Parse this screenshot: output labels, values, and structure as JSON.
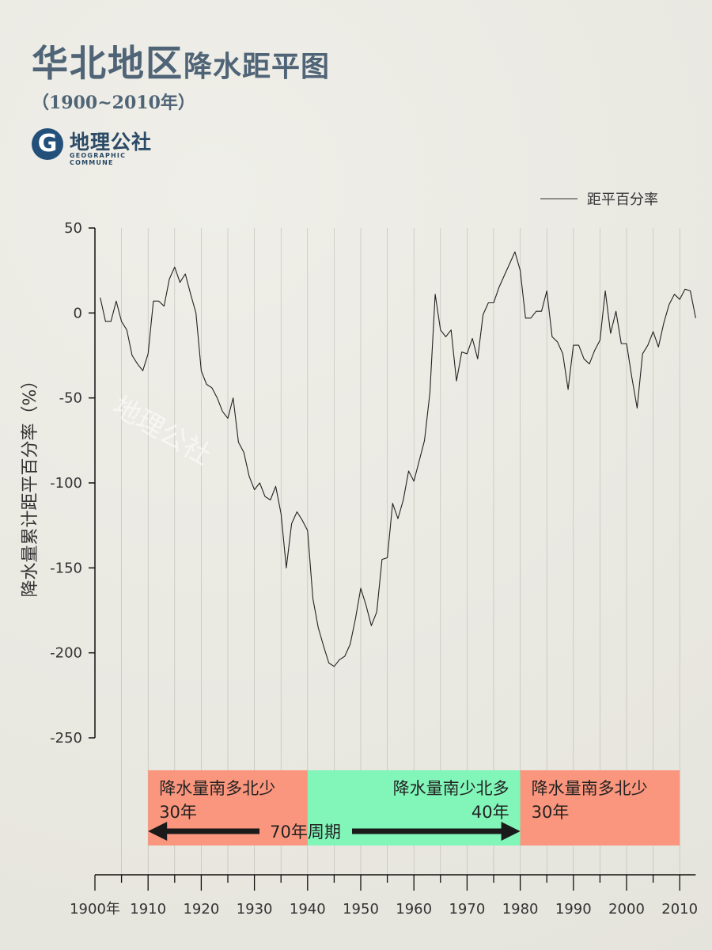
{
  "header": {
    "title_main": "华北地区",
    "title_sub": "降水距平图",
    "period": "（1900~2010年）"
  },
  "logo": {
    "glyph": "G",
    "name_cn": "地理公社",
    "name_en": "GEOGRAPHIC COMMUNE",
    "watermark": "地理公社"
  },
  "colors": {
    "title": "#4f6476",
    "logo": "#23507a",
    "band_dry": "#fa967d",
    "band_wet": "#82f5b9",
    "line": "#222222"
  },
  "chart_data": {
    "type": "line",
    "ylabel": "降水量累计距平百分率（%）",
    "ylim": [
      -250,
      50
    ],
    "yticks": [
      50,
      0,
      -50,
      -100,
      -150,
      -200,
      -250
    ],
    "xlim": [
      1900,
      2013
    ],
    "xtick_labels": [
      {
        "x": 1900,
        "label": "1900年"
      },
      {
        "x": 1910,
        "label": "1910"
      },
      {
        "x": 1920,
        "label": "1920"
      },
      {
        "x": 1930,
        "label": "1930"
      },
      {
        "x": 1940,
        "label": "1940"
      },
      {
        "x": 1950,
        "label": "1950"
      },
      {
        "x": 1960,
        "label": "1960"
      },
      {
        "x": 1970,
        "label": "1970"
      },
      {
        "x": 1980,
        "label": "1980"
      },
      {
        "x": 1990,
        "label": "1990"
      },
      {
        "x": 2000,
        "label": "2000"
      },
      {
        "x": 2010,
        "label": "2010"
      }
    ],
    "legend": {
      "label": "距平百分率",
      "position": "top-right"
    },
    "series": [
      {
        "name": "距平百分率",
        "x": [
          1901,
          1902,
          1903,
          1904,
          1905,
          1906,
          1907,
          1908,
          1909,
          1910,
          1911,
          1912,
          1913,
          1914,
          1915,
          1916,
          1917,
          1918,
          1919,
          1920,
          1921,
          1922,
          1923,
          1924,
          1925,
          1926,
          1927,
          1928,
          1929,
          1930,
          1931,
          1932,
          1933,
          1934,
          1935,
          1936,
          1937,
          1938,
          1939,
          1940,
          1941,
          1942,
          1943,
          1944,
          1945,
          1946,
          1947,
          1948,
          1949,
          1950,
          1951,
          1952,
          1953,
          1954,
          1955,
          1956,
          1957,
          1958,
          1959,
          1960,
          1961,
          1962,
          1963,
          1964,
          1965,
          1966,
          1967,
          1968,
          1969,
          1970,
          1971,
          1972,
          1973,
          1974,
          1975,
          1976,
          1977,
          1978,
          1979,
          1980,
          1981,
          1982,
          1983,
          1984,
          1985,
          1986,
          1987,
          1988,
          1989,
          1990,
          1991,
          1992,
          1993,
          1994,
          1995,
          1996,
          1997,
          1998,
          1999,
          2000,
          2001,
          2002,
          2003,
          2004,
          2005,
          2006,
          2007,
          2008,
          2009,
          2010,
          2011,
          2012,
          2013
        ],
        "y": [
          9,
          -5,
          -5,
          7,
          -5,
          -10,
          -25,
          -30,
          -34,
          -24,
          7,
          7,
          4,
          20,
          27,
          18,
          23,
          11,
          0,
          -34,
          -42,
          -44,
          -50,
          -58,
          -62,
          -50,
          -76,
          -82,
          -96,
          -104,
          -100,
          -108,
          -110,
          -102,
          -118,
          -150,
          -124,
          -117,
          -122,
          -128,
          -168,
          -185,
          -196,
          -206,
          -208,
          -204,
          -202,
          -195,
          -180,
          -162,
          -172,
          -184,
          -176,
          -145,
          -144,
          -112,
          -121,
          -110,
          -93,
          -99,
          -87,
          -75,
          -47,
          11,
          -10,
          -14,
          -10,
          -40,
          -23,
          -24,
          -15,
          -27,
          -1,
          6,
          6,
          15,
          22,
          29,
          36,
          25,
          -3,
          -3,
          1,
          1,
          13,
          -14,
          -17,
          -24,
          -45,
          -19,
          -19,
          -27,
          -30,
          -22,
          -16,
          13,
          -12,
          1,
          -18,
          -18,
          -38,
          -56,
          -24,
          -19,
          -11,
          -20,
          -6,
          5,
          11,
          8,
          14,
          13,
          -3
        ]
      }
    ],
    "periods": [
      {
        "label": "降水量南多北少",
        "years": "30年",
        "start": 1910,
        "end": 1940,
        "kind": "dry"
      },
      {
        "label": "降水量南少北多",
        "years": "40年",
        "start": 1940,
        "end": 1980,
        "kind": "wet"
      },
      {
        "label": "降水量南多北少",
        "years": "30年",
        "start": 1980,
        "end": 2010,
        "kind": "dry"
      }
    ],
    "cycle_label": "70年周期"
  }
}
